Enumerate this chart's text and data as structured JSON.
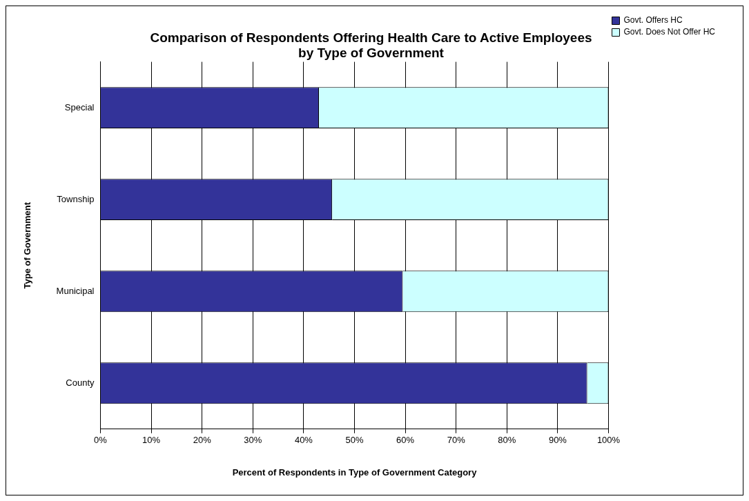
{
  "chart_data": {
    "type": "bar",
    "orientation": "horizontal",
    "stacked": true,
    "title": "Comparison of Respondents Offering Health Care to Active Employees\nby Type of Government",
    "xlabel": "Percent of Respondents in Type of Government Category",
    "ylabel": "Type of Government",
    "categories": [
      "Special",
      "Township",
      "Municipal",
      "County"
    ],
    "series": [
      {
        "name": "Govt. Offers HC",
        "color": "#333399",
        "values": [
          43,
          45.6,
          59.5,
          95.8
        ]
      },
      {
        "name": "Govt. Does Not Offer HC",
        "color": "#ccffff",
        "values": [
          57,
          54.4,
          40.5,
          4.2
        ]
      }
    ],
    "xlim": [
      0,
      100
    ],
    "xticks": [
      {
        "value": 0,
        "label": "0%"
      },
      {
        "value": 10,
        "label": "10%"
      },
      {
        "value": 20,
        "label": "20%"
      },
      {
        "value": 30,
        "label": "30%"
      },
      {
        "value": 40,
        "label": "40%"
      },
      {
        "value": 50,
        "label": "50%"
      },
      {
        "value": 60,
        "label": "60%"
      },
      {
        "value": 70,
        "label": "70%"
      },
      {
        "value": 80,
        "label": "80%"
      },
      {
        "value": 90,
        "label": "90%"
      },
      {
        "value": 100,
        "label": "100%"
      }
    ],
    "grid": "x",
    "legend": "top right"
  }
}
